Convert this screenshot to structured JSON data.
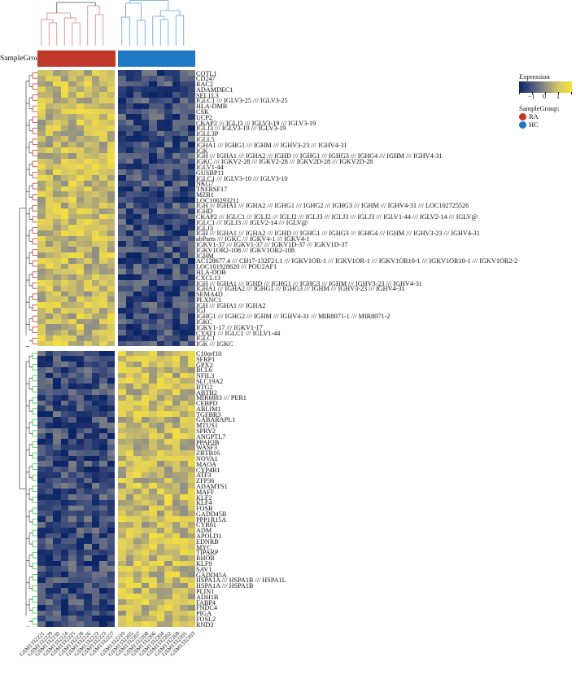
{
  "chart_data": {
    "type": "heatmap",
    "title": "",
    "annotation_label": "SampleGroup",
    "legend": {
      "expression_title": "Expression",
      "expression_ticks": [
        "−1",
        "0",
        "1"
      ],
      "colorscale": [
        "#0b2566",
        "#8f8f86",
        "#f7e23c"
      ],
      "group_title": "SampleGroup:",
      "groups": [
        {
          "name": "RA",
          "color": "#c0392b"
        },
        {
          "name": "HC",
          "color": "#1f78c1"
        }
      ]
    },
    "columns": {
      "RA": [
        "GSM1332221",
        "GSM1332229",
        "GSM1332230",
        "GSM1332224",
        "GSM1332225",
        "GSM1332228",
        "GSM1332226",
        "GSM1332222",
        "GSM1332223",
        "GSM1332227"
      ],
      "HC": [
        "GSM1332210",
        "GSM1332205",
        "GSM1332207",
        "GSM1332208",
        "GSM1332206",
        "GSM1332204",
        "GSM1332202",
        "GSM1332209",
        "GSM1332201",
        "GSM1332203"
      ]
    },
    "row_clusters": [
      {
        "name": "up_in_RA",
        "dendro_color": "#c0392b",
        "pattern": "RA high (yellow), HC low (blue)",
        "genes": [
          "COTL1",
          "CD247",
          "RAC2",
          "ADAMDEC1",
          "SEL1L3",
          "IGLC1 /// IGLV3-25 /// IGLV3-25",
          "HLA-DMB",
          "CSK",
          "UCP2",
          "CKAP2 /// IGLJ3 /// IGLV3-19 /// IGLV3-19",
          "IGLJ3 /// IGLV3-19 /// IGLV3-19",
          "IGLL3P",
          "IGLL5",
          "IGHA1 /// IGHG1 /// IGHM /// IGHV3-23 /// IGHV4-31",
          "IGK",
          "IGH /// IGHA1 /// IGHA2 /// IGHD /// IGHG1 /// IGHG3 /// IGHG4 /// IGHM /// IGHV4-31",
          "IGKC /// IGKV2-28 /// IGKV2-28 /// IGKV2D-28 /// IGKV2D-28",
          "IGLV1-44",
          "GUSBP11",
          "IGLC1 /// IGLV3-10 /// IGLV3-10",
          "NKG7",
          "TNFRSF17",
          "MZB1",
          "LOC100293211",
          "IGH /// IGHA1 /// IGHA2 /// IGHG1 /// IGHG2 /// IGHG3 /// IGHM /// IGHV4-31 /// LOC102725526",
          "IGHD",
          "CKAP2 /// IGLC1 /// IGLJ2 /// IGLJ2 /// IGLJ3 /// IGLJ3 /// IGLJ3 /// IGLV1-44 /// IGLV2-14 /// IGLV@",
          "IGLC1 /// IGLJ3 /// IGLV2-14 /// IGLV@",
          "IGLJ3",
          "IGH /// IGHA1 /// IGHA2 /// IGHD /// IGHG1 /// IGHG3 /// IGHG4 /// IGHM /// IGHV3-23 /// IGHV4-31",
          "abParts /// IGKC /// IGKV4-1 /// IGKV4-1",
          "IGKV1-37 /// IGKV1-37 /// IGKV1D-37 /// IGKV1D-37",
          "IGKV1OR2-108 /// IGKV1OR2-108",
          "IGHM",
          "AC128677.4 /// CH17-132F21.1 /// IGKV1OR-1 /// IGKV1OR-1 /// IGKV1OR10-1 /// IGKV1OR10-1 /// IGKV1OR2-2",
          "LOC101928620 /// POU2AF1",
          "HLA-DOB",
          "CXCL13",
          "IGH /// IGHA1 /// IGHD /// IGHG1 /// IGHG3 /// IGHM /// IGHV3-23 /// IGHV4-31",
          "IGHA1 /// IGHA2 /// IGHG1 /// IGHG3 /// IGHM /// IGHV3-23 /// IGHV4-31",
          "SEMA4D",
          "PLXNC1",
          "IGH /// IGHA1 /// IGHA2",
          "IGJ",
          "IGHG1 /// IGHG2 /// IGHM /// IGHV4-31 /// MIR8071-1 /// MIR8071-2",
          "IGKC",
          "IGKV1-17 /// IGKV1-17",
          "CYAT1 /// IGLC1 /// IGLV1-44",
          "IGLC1",
          "IGK /// IGKC"
        ]
      },
      {
        "name": "down_in_RA",
        "dendro_color": "#2ecc40",
        "pattern": "RA low (blue), HC high (yellow)",
        "genes": [
          "C10orf10",
          "SFRP1",
          "GPX3",
          "BCL6",
          "NFIL3",
          "SLC19A2",
          "BTG2",
          "ABTB2",
          "MIR6883 /// PER1",
          "CEBPD",
          "ABLIM1",
          "TGFBR3",
          "GABARAPL1",
          "MTUS1",
          "SPRY2",
          "ANGPTL7",
          "PPAP2B",
          "WASF3",
          "ZBTB16",
          "NOVA1",
          "MAOA",
          "CYP4B1",
          "ATF3",
          "ZFP36",
          "ADAMTS1",
          "MAFF",
          "KLF2",
          "KLF4",
          "FOSB",
          "GADD45B",
          "PPP1R15A",
          "CYR61",
          "ADM",
          "APOLD1",
          "EDNRB",
          "MYC",
          "TIPARP",
          "RHOB",
          "KLF9",
          "SAV1",
          "GADD45A",
          "HSPA1A /// HSPA1B /// HSPA1L",
          "HSPA1A /// HSPA1B",
          "PLIN1",
          "ADH1B",
          "FABP4",
          "FNDC4",
          "PIGA",
          "FOSL2",
          "RND3"
        ]
      }
    ]
  }
}
